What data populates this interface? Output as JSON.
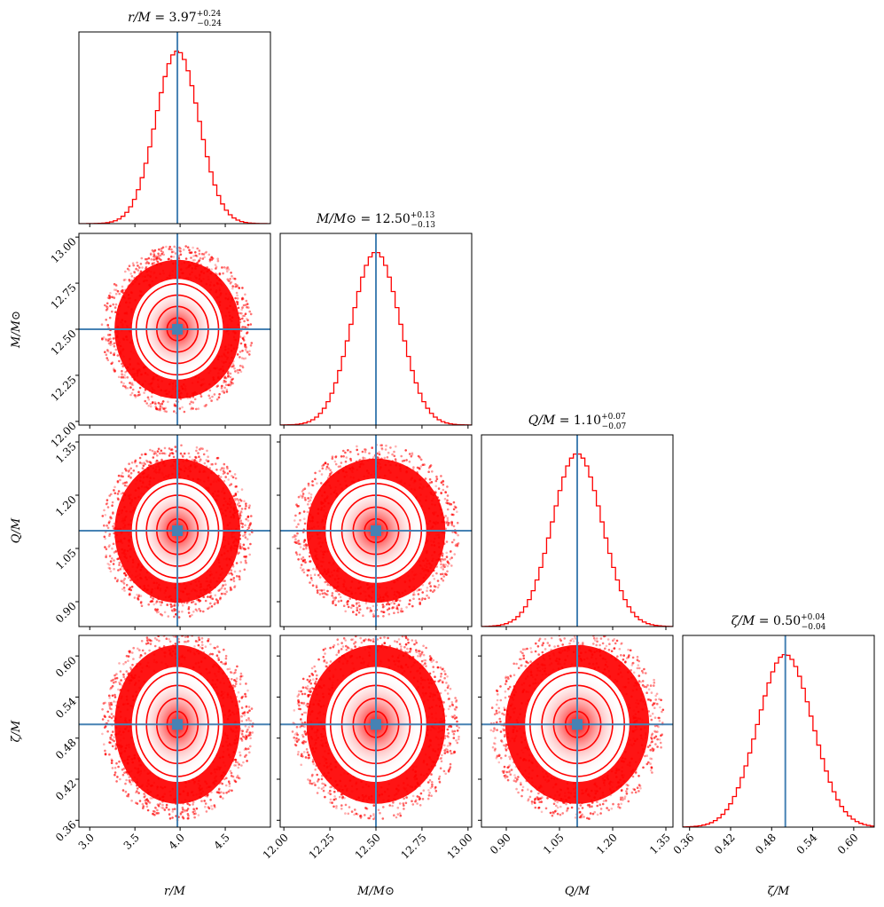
{
  "chart_data": {
    "type": "corner",
    "truth_color": "#4682b4",
    "hist_color": "#ff0000",
    "parameters": [
      {
        "id": "r",
        "label": "r/M",
        "title": {
          "name": "r/M",
          "value": "3.97",
          "plus": "+0.24",
          "minus": "−0.24"
        },
        "range": [
          2.88,
          5.0
        ],
        "ticks": [
          3.0,
          3.5,
          4.0,
          4.5
        ],
        "tick_labels": [
          "3.0",
          "3.5",
          "4.0",
          "4.5"
        ],
        "truth": 3.97,
        "std": 0.24
      },
      {
        "id": "M",
        "label": "M/M⊙",
        "title": {
          "name": "M/M⊙",
          "value": "12.50",
          "plus": "+0.13",
          "minus": "−0.13"
        },
        "range": [
          11.98,
          13.02
        ],
        "ticks": [
          12.0,
          12.25,
          12.5,
          12.75,
          13.0
        ],
        "tick_labels": [
          "12.00",
          "12.25",
          "12.50",
          "12.75",
          "13.00"
        ],
        "truth": 12.5,
        "std": 0.13
      },
      {
        "id": "Q",
        "label": "Q/M",
        "title": {
          "name": "Q/M",
          "value": "1.10",
          "plus": "+0.07",
          "minus": "−0.07"
        },
        "range": [
          0.83,
          1.37
        ],
        "ticks": [
          0.9,
          1.05,
          1.2,
          1.35
        ],
        "tick_labels": [
          "0.90",
          "1.05",
          "1.20",
          "1.35"
        ],
        "truth": 1.1,
        "std": 0.07
      },
      {
        "id": "zeta",
        "label": "ζ/M",
        "title": {
          "name": "ζ/M",
          "value": "0.50",
          "plus": "+0.04",
          "minus": "−0.04"
        },
        "range": [
          0.35,
          0.63
        ],
        "ticks": [
          0.36,
          0.42,
          0.48,
          0.54,
          0.6
        ],
        "tick_labels": [
          "0.36",
          "0.42",
          "0.48",
          "0.54",
          "0.60"
        ],
        "truth": 0.5,
        "std": 0.04
      }
    ],
    "contour_levels_sigma": [
      0.5,
      1.0,
      1.5,
      2.0
    ],
    "hist_bins": 50
  }
}
